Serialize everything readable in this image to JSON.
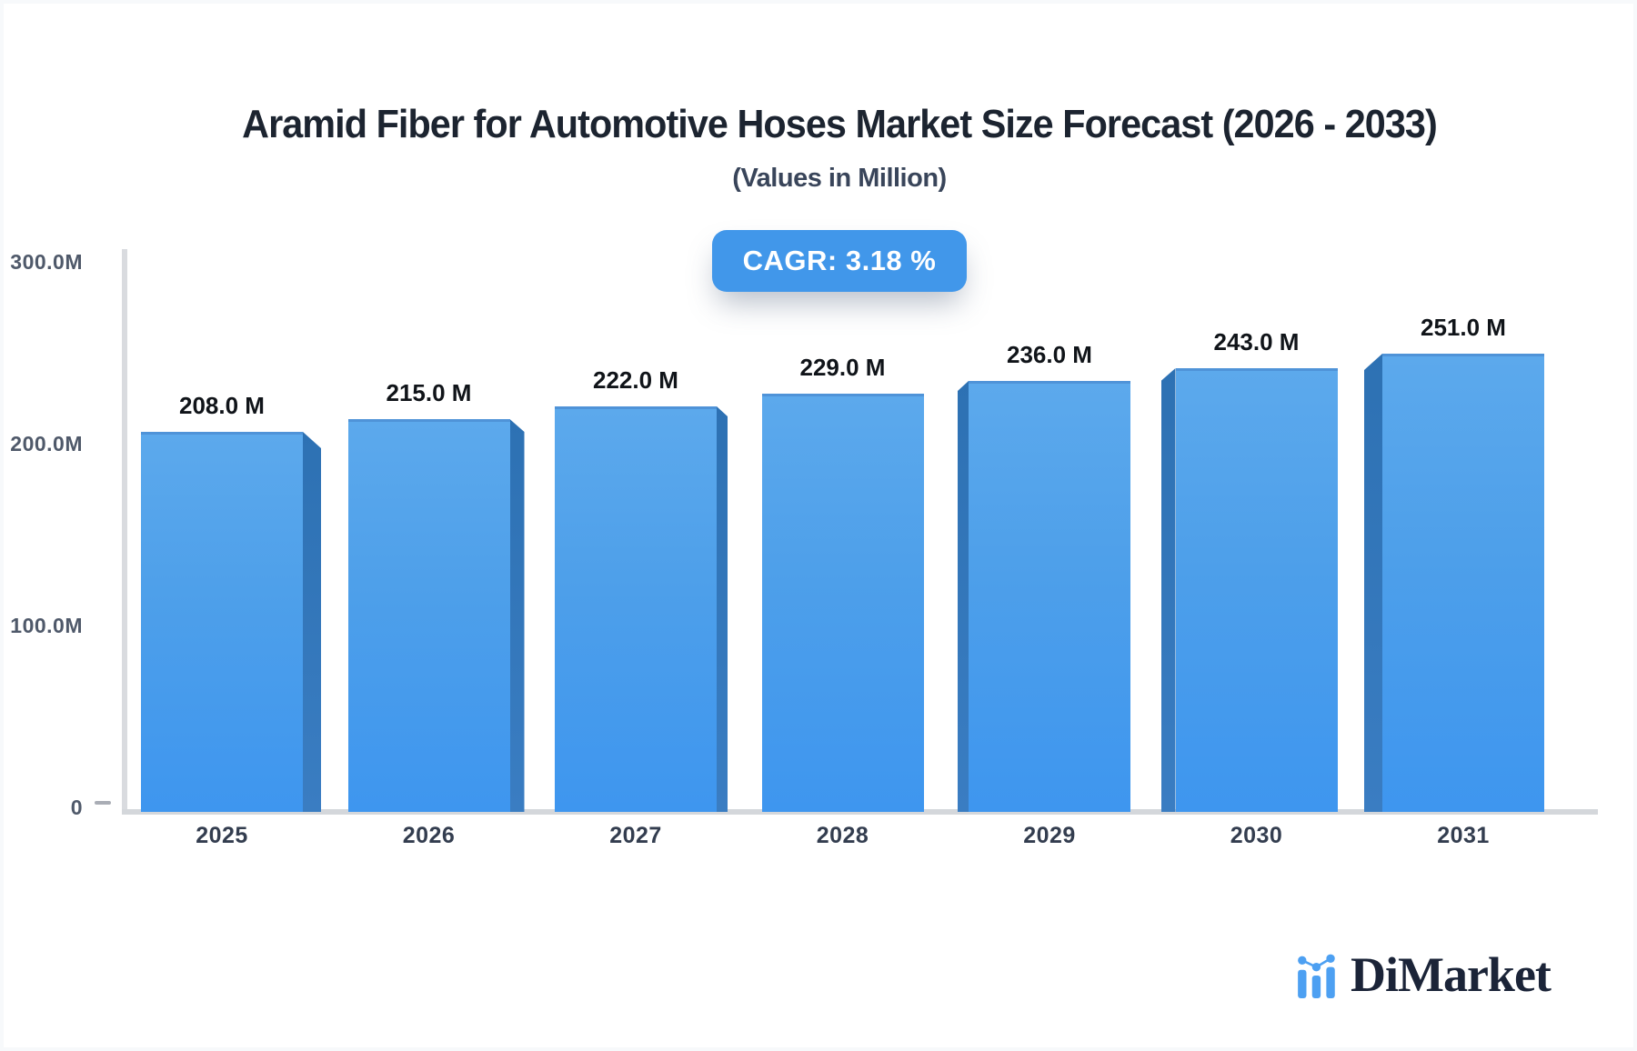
{
  "header": {
    "title": "Aramid Fiber for Automotive Hoses Market Size Forecast (2026 - 2033)",
    "subtitle": "(Values in Million)"
  },
  "cagr_badge": {
    "label": "CAGR: 3.18 %",
    "bg_color": "#4197ea",
    "text_color": "#ffffff"
  },
  "chart_data": {
    "type": "bar",
    "title": "Aramid Fiber for Automotive Hoses Market Size Forecast (2026 - 2033)",
    "subtitle": "(Values in Million)",
    "unit": "Million",
    "categories": [
      "2025",
      "2026",
      "2027",
      "2028",
      "2029",
      "2030",
      "2031"
    ],
    "values": [
      208,
      215,
      222,
      229,
      236,
      243,
      251
    ],
    "value_labels": [
      "208.0 M",
      "215.0 M",
      "222.0 M",
      "229.0 M",
      "236.0 M",
      "243.0 M",
      "251.0 M"
    ],
    "xlabel": "",
    "ylabel": "",
    "ylim": [
      0,
      300
    ],
    "yticks": [
      {
        "label": "300.0M",
        "value": 300
      },
      {
        "label": "200.0M",
        "value": 200
      },
      {
        "label": "100.0M",
        "value": 100
      },
      {
        "label": "0",
        "value": 0
      }
    ],
    "grid": false,
    "legend": false,
    "bar_color_top": "#5ca9ec",
    "bar_color_bottom": "#3e96ef",
    "bar_side_color": "#2d71b3",
    "axis_color": "#d7d9de"
  },
  "footer_logo": {
    "text": "DiMarket",
    "text_color": "#1b2438",
    "icon": "bar-chart-logo-icon",
    "icon_color": "#4da0f2"
  }
}
